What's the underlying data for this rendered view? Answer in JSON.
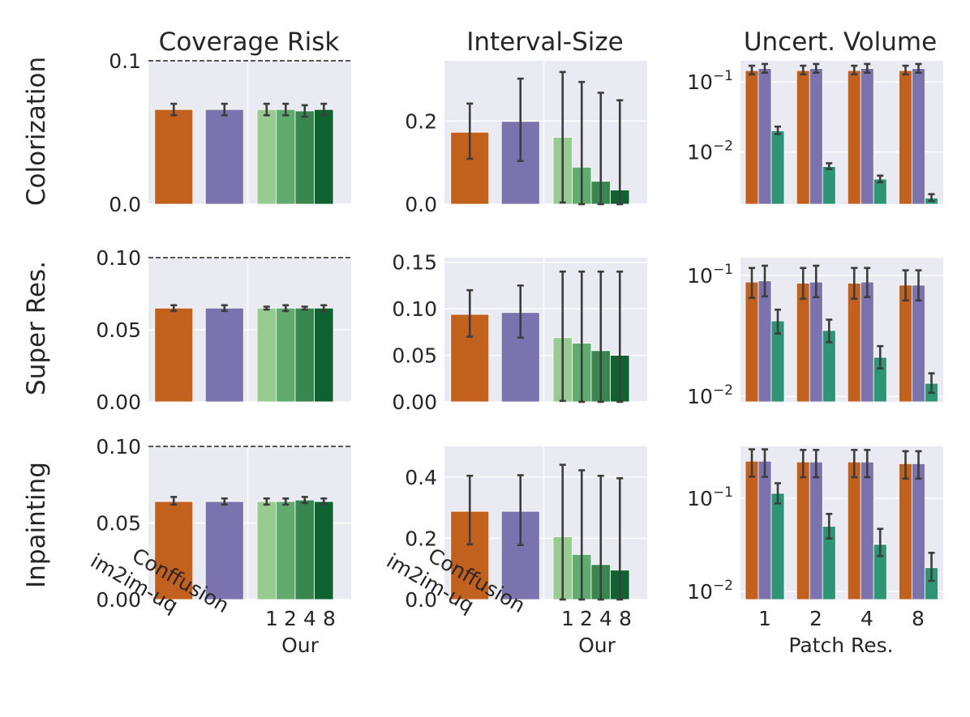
{
  "colors": {
    "im2im": "#c2601e",
    "conffusion": "#7b73ad",
    "our1": "#97cb8f",
    "our2": "#60ab6e",
    "our4": "#37874f",
    "our8": "#0f6330",
    "ours_vol": "#2d9474",
    "panel_bg": "#eaeaf2",
    "grid": "#ffffff",
    "err": "#3d3d3d"
  },
  "row_labels": [
    "Colorization",
    "Super Res.",
    "Inpainting"
  ],
  "col_titles": [
    "Coverage Risk",
    "Interval-Size",
    "Uncert. Volume"
  ],
  "x_labels": {
    "methods": [
      "im2im-uq",
      "Conffusion"
    ],
    "our_ticks": [
      "1",
      "2",
      "4",
      "8"
    ],
    "our_label": "Our",
    "patch_ticks": [
      "1",
      "2",
      "4",
      "8"
    ],
    "patch_label": "Patch Res."
  },
  "chart_data": [
    {
      "type": "bar",
      "row": "Colorization",
      "title": "Coverage Risk",
      "categories": [
        "im2im-uq",
        "Conffusion",
        "Our 1",
        "Our 2",
        "Our 4",
        "Our 8"
      ],
      "values": [
        0.066,
        0.066,
        0.066,
        0.066,
        0.065,
        0.066
      ],
      "err_low": [
        0.062,
        0.062,
        0.062,
        0.062,
        0.061,
        0.062
      ],
      "err_high": [
        0.07,
        0.07,
        0.07,
        0.07,
        0.069,
        0.07
      ],
      "ylim": [
        0,
        0.1
      ],
      "yticks": [
        0.0,
        0.1
      ],
      "ytick_labels": [
        "0.0",
        "0.1"
      ],
      "reference_line": 0.1
    },
    {
      "type": "bar",
      "row": "Colorization",
      "title": "Interval-Size",
      "categories": [
        "im2im-uq",
        "Conffusion",
        "Our 1",
        "Our 2",
        "Our 4",
        "Our 8"
      ],
      "values": [
        0.173,
        0.199,
        0.161,
        0.089,
        0.055,
        0.034
      ],
      "err_low": [
        0.109,
        0.104,
        0.004,
        0.0,
        0.0,
        0.0
      ],
      "err_high": [
        0.242,
        0.302,
        0.318,
        0.294,
        0.268,
        0.25
      ],
      "ylim": [
        0,
        0.345
      ],
      "yticks": [
        0.0,
        0.2
      ],
      "ytick_labels": [
        "0.0",
        "0.2"
      ]
    },
    {
      "type": "bar",
      "row": "Colorization",
      "title": "Uncert. Volume",
      "yscale": "log",
      "categories": [
        "1",
        "2",
        "4",
        "8"
      ],
      "series": [
        {
          "name": "im2im-uq",
          "values": [
            0.145,
            0.145,
            0.145,
            0.145
          ],
          "err_low": [
            0.128,
            0.128,
            0.128,
            0.128
          ],
          "err_high": [
            0.17,
            0.17,
            0.17,
            0.17
          ]
        },
        {
          "name": "Conffusion",
          "values": [
            0.155,
            0.155,
            0.155,
            0.155
          ],
          "err_low": [
            0.135,
            0.135,
            0.135,
            0.135
          ],
          "err_high": [
            0.18,
            0.18,
            0.18,
            0.18
          ]
        },
        {
          "name": "Our",
          "values": [
            0.02,
            0.0062,
            0.0041,
            0.0022
          ],
          "err_low": [
            0.018,
            0.0057,
            0.0037,
            0.002
          ],
          "err_high": [
            0.023,
            0.0069,
            0.0046,
            0.0025
          ]
        }
      ],
      "ylim": [
        0.0018,
        0.2
      ],
      "yticks": [
        0.1,
        0.01
      ],
      "ytick_labels": [
        "10^-1",
        "10^-2"
      ]
    },
    {
      "type": "bar",
      "row": "Super Res.",
      "title": "Coverage Risk",
      "categories": [
        "im2im-uq",
        "Conffusion",
        "Our 1",
        "Our 2",
        "Our 4",
        "Our 8"
      ],
      "values": [
        0.065,
        0.065,
        0.065,
        0.065,
        0.065,
        0.065
      ],
      "err_low": [
        0.063,
        0.063,
        0.064,
        0.063,
        0.064,
        0.063
      ],
      "err_high": [
        0.067,
        0.067,
        0.066,
        0.067,
        0.066,
        0.067
      ],
      "ylim": [
        0,
        0.1
      ],
      "yticks": [
        0.0,
        0.05,
        0.1
      ],
      "ytick_labels": [
        "0.00",
        "0.05",
        "0.10"
      ],
      "reference_line": 0.1
    },
    {
      "type": "bar",
      "row": "Super Res.",
      "title": "Interval-Size",
      "categories": [
        "im2im-uq",
        "Conffusion",
        "Our 1",
        "Our 2",
        "Our 4",
        "Our 8"
      ],
      "values": [
        0.094,
        0.096,
        0.069,
        0.063,
        0.055,
        0.05
      ],
      "err_low": [
        0.07,
        0.069,
        0.001,
        0.0,
        0.0,
        0.0
      ],
      "err_high": [
        0.12,
        0.125,
        0.14,
        0.14,
        0.14,
        0.14
      ],
      "ylim": [
        0,
        0.155
      ],
      "yticks": [
        0.0,
        0.05,
        0.1,
        0.15
      ],
      "ytick_labels": [
        "0.00",
        "0.05",
        "0.10",
        "0.15"
      ]
    },
    {
      "type": "bar",
      "row": "Super Res.",
      "title": "Uncert. Volume",
      "yscale": "log",
      "categories": [
        "1",
        "2",
        "4",
        "8"
      ],
      "series": [
        {
          "name": "im2im-uq",
          "values": [
            0.088,
            0.086,
            0.086,
            0.083
          ],
          "err_low": [
            0.065,
            0.064,
            0.064,
            0.062
          ],
          "err_high": [
            0.115,
            0.115,
            0.115,
            0.11
          ]
        },
        {
          "name": "Conffusion",
          "values": [
            0.09,
            0.088,
            0.088,
            0.083
          ],
          "err_low": [
            0.067,
            0.066,
            0.066,
            0.062
          ],
          "err_high": [
            0.12,
            0.12,
            0.115,
            0.11
          ]
        },
        {
          "name": "Our",
          "values": [
            0.042,
            0.035,
            0.021,
            0.0128
          ],
          "err_low": [
            0.033,
            0.028,
            0.017,
            0.0107
          ],
          "err_high": [
            0.052,
            0.043,
            0.026,
            0.0155
          ]
        }
      ],
      "ylim": [
        0.009,
        0.14
      ],
      "yticks": [
        0.1,
        0.01
      ],
      "ytick_labels": [
        "10^-1",
        "10^-2"
      ]
    },
    {
      "type": "bar",
      "row": "Inpainting",
      "title": "Coverage Risk",
      "categories": [
        "im2im-uq",
        "Conffusion",
        "Our 1",
        "Our 2",
        "Our 4",
        "Our 8"
      ],
      "values": [
        0.064,
        0.064,
        0.064,
        0.064,
        0.065,
        0.064
      ],
      "err_low": [
        0.062,
        0.062,
        0.062,
        0.062,
        0.063,
        0.062
      ],
      "err_high": [
        0.067,
        0.066,
        0.066,
        0.066,
        0.067,
        0.066
      ],
      "ylim": [
        0,
        0.1
      ],
      "yticks": [
        0.0,
        0.05,
        0.1
      ],
      "ytick_labels": [
        "0.00",
        "0.05",
        "0.10"
      ],
      "reference_line": 0.1
    },
    {
      "type": "bar",
      "row": "Inpainting",
      "title": "Interval-Size",
      "categories": [
        "im2im-uq",
        "Conffusion",
        "Our 1",
        "Our 2",
        "Our 4",
        "Our 8"
      ],
      "values": [
        0.288,
        0.288,
        0.205,
        0.147,
        0.114,
        0.096
      ],
      "err_low": [
        0.18,
        0.178,
        0.0,
        0.0,
        0.0,
        0.0
      ],
      "err_high": [
        0.404,
        0.406,
        0.44,
        0.422,
        0.404,
        0.396
      ],
      "ylim": [
        0,
        0.5
      ],
      "yticks": [
        0.0,
        0.2,
        0.4
      ],
      "ytick_labels": [
        "0.0",
        "0.2",
        "0.4"
      ]
    },
    {
      "type": "bar",
      "row": "Inpainting",
      "title": "Uncert. Volume",
      "yscale": "log",
      "categories": [
        "1",
        "2",
        "4",
        "8"
      ],
      "series": [
        {
          "name": "im2im-uq",
          "values": [
            0.25,
            0.245,
            0.245,
            0.235
          ],
          "err_low": [
            0.17,
            0.168,
            0.168,
            0.162
          ],
          "err_high": [
            0.335,
            0.33,
            0.33,
            0.32
          ]
        },
        {
          "name": "Conffusion",
          "values": [
            0.25,
            0.245,
            0.245,
            0.235
          ],
          "err_low": [
            0.17,
            0.168,
            0.168,
            0.162
          ],
          "err_high": [
            0.335,
            0.33,
            0.33,
            0.32
          ]
        },
        {
          "name": "Our",
          "values": [
            0.113,
            0.05,
            0.032,
            0.018
          ],
          "err_low": [
            0.088,
            0.037,
            0.024,
            0.013
          ],
          "err_high": [
            0.145,
            0.068,
            0.047,
            0.026
          ]
        }
      ],
      "ylim": [
        0.0082,
        0.36
      ],
      "yticks": [
        0.1,
        0.01
      ],
      "ytick_labels": [
        "10^-1",
        "10^-2"
      ]
    }
  ]
}
